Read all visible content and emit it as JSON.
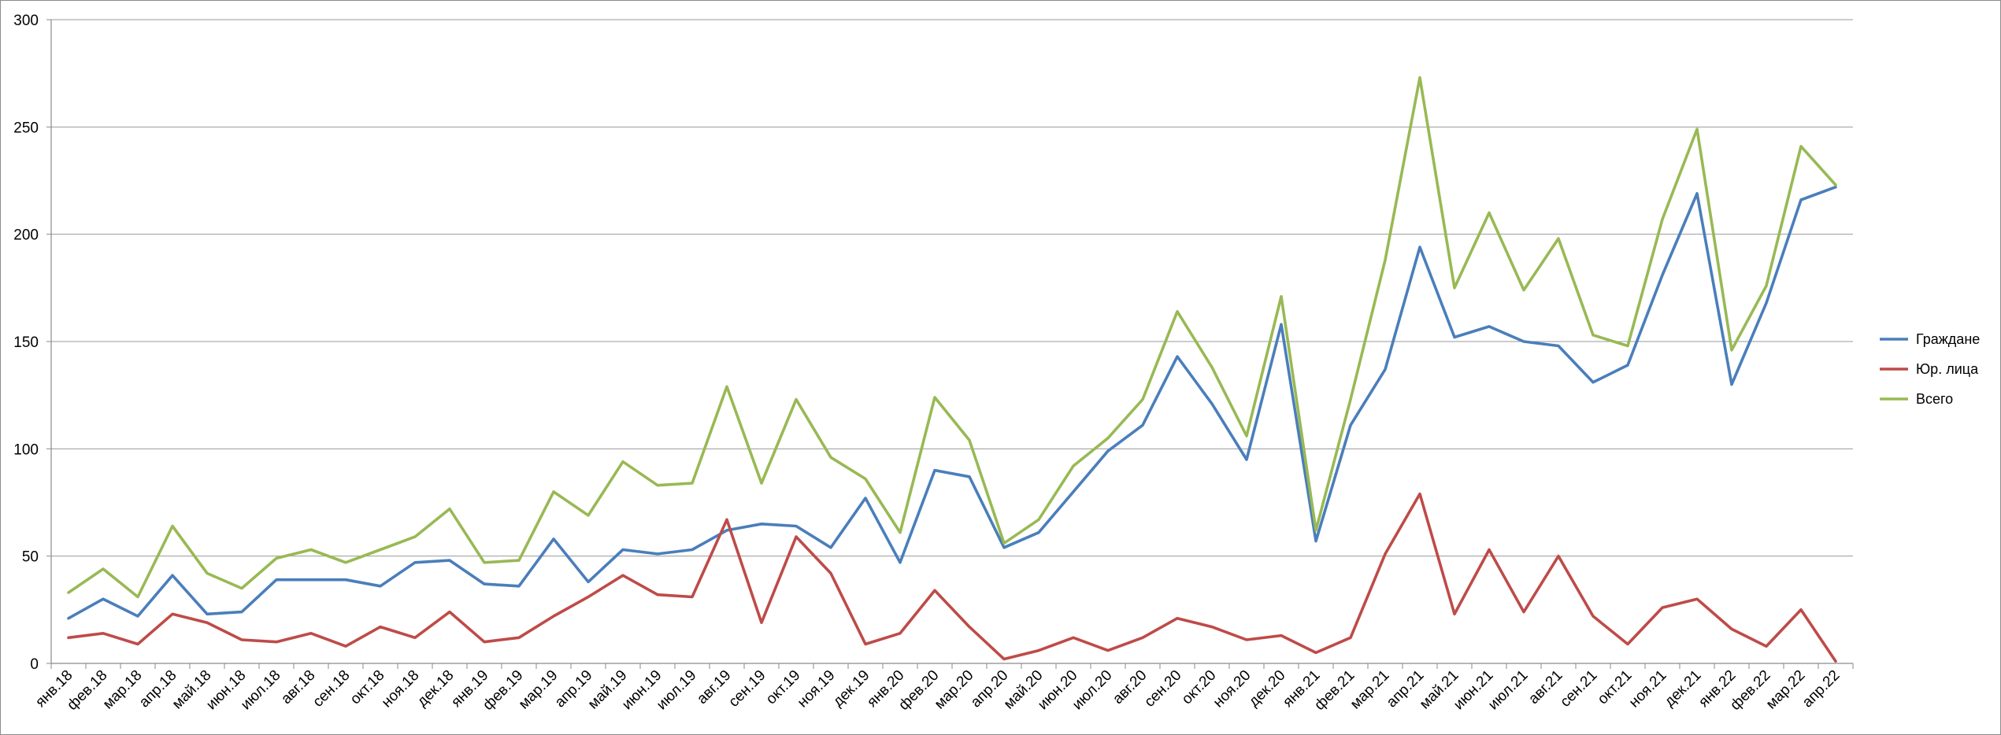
{
  "chart_data": {
    "type": "line",
    "title": "",
    "xlabel": "",
    "ylabel": "",
    "ylim": [
      0,
      300
    ],
    "yticks": [
      0,
      50,
      100,
      150,
      200,
      250,
      300
    ],
    "grid": "horizontal",
    "legend_position": "right",
    "categories": [
      "янв.18",
      "фев.18",
      "мар.18",
      "апр.18",
      "май.18",
      "июн.18",
      "июл.18",
      "авг.18",
      "сен.18",
      "окт.18",
      "ноя.18",
      "дек.18",
      "янв.19",
      "фев.19",
      "мар.19",
      "апр.19",
      "май.19",
      "июн.19",
      "июл.19",
      "авг.19",
      "сен.19",
      "окт.19",
      "ноя.19",
      "дек.19",
      "янв.20",
      "фев.20",
      "мар.20",
      "апр.20",
      "май.20",
      "июн.20",
      "июл.20",
      "авг.20",
      "сен.20",
      "окт.20",
      "ноя.20",
      "дек.20",
      "янв.21",
      "фев.21",
      "мар.21",
      "апр.21",
      "май.21",
      "июн.21",
      "июл.21",
      "авг.21",
      "сен.21",
      "окт.21",
      "ноя.21",
      "дек.21",
      "янв.22",
      "фев.22",
      "мар.22",
      "апр.22"
    ],
    "series": [
      {
        "name": "Граждане",
        "color": "#4a7ebb",
        "values": [
          21,
          30,
          22,
          41,
          23,
          24,
          39,
          39,
          39,
          36,
          47,
          48,
          37,
          36,
          58,
          38,
          53,
          51,
          53,
          62,
          65,
          64,
          54,
          77,
          47,
          90,
          87,
          54,
          61,
          80,
          99,
          111,
          143,
          121,
          95,
          158,
          57,
          111,
          137,
          194,
          152,
          157,
          150,
          148,
          131,
          139,
          181,
          219,
          130,
          168,
          216,
          222
        ]
      },
      {
        "name": "Юр. лица",
        "color": "#be4b48",
        "values": [
          12,
          14,
          9,
          23,
          19,
          11,
          10,
          14,
          8,
          17,
          12,
          24,
          10,
          12,
          22,
          31,
          41,
          32,
          31,
          67,
          19,
          59,
          42,
          9,
          14,
          34,
          17,
          2,
          6,
          12,
          6,
          12,
          21,
          17,
          11,
          13,
          5,
          12,
          51,
          79,
          23,
          53,
          24,
          50,
          22,
          9,
          26,
          30,
          16,
          8,
          25,
          1
        ]
      },
      {
        "name": "Всего",
        "color": "#98b954",
        "values": [
          33,
          44,
          31,
          64,
          42,
          35,
          49,
          53,
          47,
          53,
          59,
          72,
          47,
          48,
          80,
          69,
          94,
          83,
          84,
          129,
          84,
          123,
          96,
          86,
          61,
          124,
          104,
          56,
          67,
          92,
          105,
          123,
          164,
          138,
          106,
          171,
          62,
          123,
          188,
          273,
          175,
          210,
          174,
          198,
          153,
          148,
          207,
          249,
          146,
          176,
          241,
          223
        ]
      }
    ]
  }
}
